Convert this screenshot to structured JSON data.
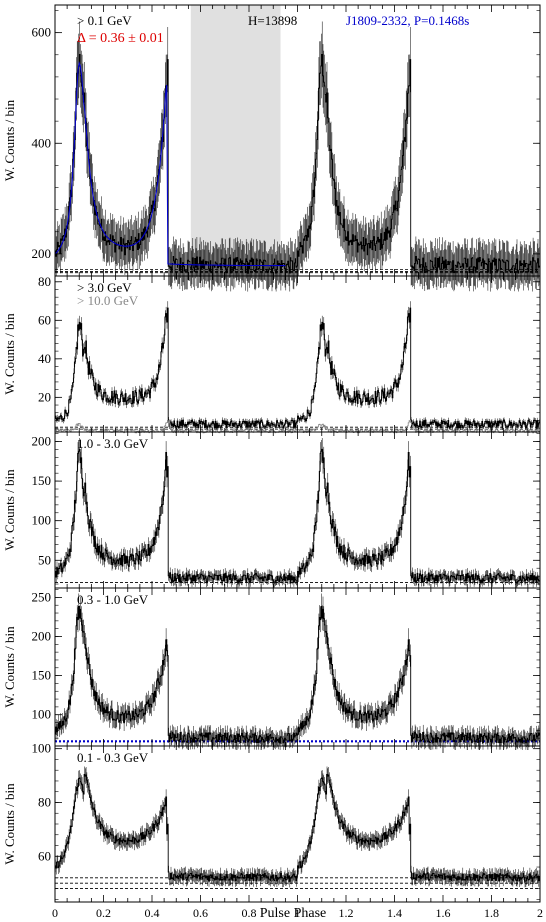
{
  "figure": {
    "x_axis_label": "Pulse Phase",
    "x_tick_labels": [
      "0",
      "0.2",
      "0.4",
      "0.6",
      "0.8",
      "1",
      "1.2",
      "1.4",
      "1.6",
      "1.8",
      "2"
    ]
  },
  "chart_data": [
    {
      "type": "line",
      "ylabel": "W. Counts / bin",
      "xlim": [
        0,
        2
      ],
      "ylim": [
        160,
        650
      ],
      "yticks": [
        200,
        400,
        600
      ],
      "ytick_labels": [
        "200",
        "400",
        "600"
      ],
      "annotations": [
        {
          "text": "> 0.1 GeV",
          "color": "#000000"
        },
        {
          "text": "Δ = 0.36 ± 0.01",
          "color": "#dd0000"
        },
        {
          "text": "H=13898",
          "color": "#000000"
        },
        {
          "text": "J1809-2332, P=0.1468s",
          "color": "#0000cc"
        }
      ],
      "shaded_region": [
        0.56,
        0.93
      ],
      "shade_color": "#e0e0e0",
      "model_color": "#0000cc",
      "profile": {
        "base": 178,
        "peak1": 545,
        "peak2": 555,
        "bridge": 195,
        "p1_width": 0.025,
        "p2_width": 0.018
      },
      "background_levels": [
        172,
        168,
        166
      ]
    },
    {
      "type": "line",
      "ylabel": "W. Counts / bin",
      "xlim": [
        0,
        2
      ],
      "ylim": [
        2,
        83
      ],
      "yticks": [
        20,
        40,
        60,
        80
      ],
      "ytick_labels": [
        "20",
        "40",
        "60",
        "80"
      ],
      "annotations": [
        {
          "text": "> 3.0 GeV",
          "color": "#000000"
        },
        {
          "text": "> 10.0 GeV",
          "color": "#888888"
        }
      ],
      "profile": {
        "base": 6,
        "peak1": 57,
        "peak2": 72,
        "bridge": 18,
        "p1_width": 0.02,
        "p2_width": 0.012
      },
      "second_series": {
        "name": "> 10.0 GeV",
        "color": "#888888",
        "base": 2.5,
        "peak1": 6,
        "peak2": 8
      },
      "background_levels": [
        4.5,
        3.5
      ]
    },
    {
      "type": "line",
      "ylabel": "W. Counts / bin",
      "xlim": [
        0,
        2
      ],
      "ylim": [
        15,
        212
      ],
      "yticks": [
        50,
        100,
        150,
        200
      ],
      "ytick_labels": [
        "50",
        "100",
        "150",
        "200"
      ],
      "annotations": [
        {
          "text": "1.0 - 3.0 GeV",
          "color": "#000000"
        }
      ],
      "profile": {
        "base": 27,
        "peak1": 180,
        "peak2": 195,
        "bridge": 44,
        "p1_width": 0.022,
        "p2_width": 0.015
      },
      "background_levels": [
        22
      ]
    },
    {
      "type": "line",
      "ylabel": "W. Counts / bin",
      "xlim": [
        0,
        2
      ],
      "ylim": [
        60,
        262
      ],
      "yticks": [
        100,
        150,
        200,
        250
      ],
      "ytick_labels": [
        "100",
        "150",
        "200",
        "250"
      ],
      "annotations": [
        {
          "text": "0.3 - 1.0 GeV",
          "color": "#000000"
        }
      ],
      "profile": {
        "base": 70,
        "peak1": 232,
        "peak2": 200,
        "bridge": 88,
        "p1_width": 0.025,
        "p2_width": 0.02
      },
      "background_levels": [
        66
      ],
      "background_color": "#0000cc"
    },
    {
      "type": "line",
      "ylabel": "W. Counts / bin",
      "xlim": [
        0,
        2
      ],
      "ylim": [
        43,
        101
      ],
      "yticks": [
        60,
        80,
        100
      ],
      "ytick_labels": [
        "60",
        "80",
        "100"
      ],
      "annotations": [
        {
          "text": "0.1 - 0.3 GeV",
          "color": "#000000"
        }
      ],
      "profile": {
        "base": 52,
        "peak1": 88,
        "peak2": 80,
        "bridge": 62,
        "p1_width": 0.035,
        "p2_width": 0.025
      },
      "background_levels": [
        52,
        50,
        48
      ]
    }
  ]
}
